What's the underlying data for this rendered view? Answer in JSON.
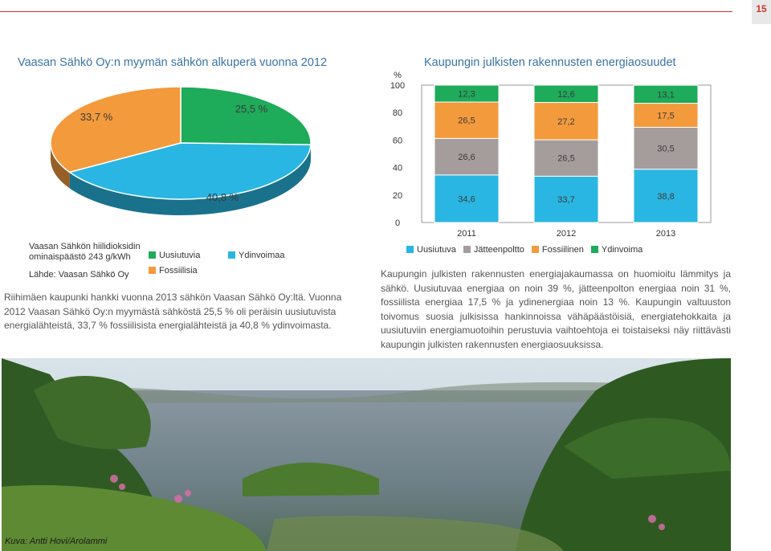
{
  "page": {
    "number": "15"
  },
  "pie": {
    "title": "Vaasan Sähkö Oy:n myymän sähkön alkuperä vuonna 2012",
    "labels": {
      "fossil": "33,7 %",
      "renewable": "25,5 %",
      "nuclear": "40,8 %"
    },
    "emission_line1": "Vaasan Sähkön hiilidioksidin",
    "emission_line2": "ominaispäästö 243 g/kWh",
    "source": "Lähde: Vaasan Sähkö Oy",
    "legend": {
      "renewable": "Uusiutuvia",
      "nuclear": "Ydinvoimaa",
      "fossil": "Fossiilisia"
    },
    "paragraph": "Riihimäen kaupunki hankki vuonna 2013 sähkön Vaasan Sähkö Oy:ltä. Vuonna 2012 Vaasan Sähkö Oy:n myymästä sähköstä 25,5 % oli peräisin uusiutuvista energialähteistä, 33,7 % fossiilisista energialähteistä ja 40,8 % ydinvoimasta."
  },
  "bar": {
    "title": "Kaupungin julkisten rakennusten energiaosuudet",
    "unit": "%",
    "paragraph": "Kaupungin julkisten rakennusten energiajakaumassa on huomioitu lämmitys ja sähkö. Uusiutuvaa energiaa on noin 39 %, jätteenpolton energiaa noin 31 %, fossiilista energiaa 17,5 % ja ydinenergiaa noin 13 %. Kaupungin valtuuston toivomus suosia julkisissa hankinnoissa vähäpäästöisiä, energiatehokkaita ja uusiutuviin energiamuotoihin perustuvia vaihtoehtoja ei toistaiseksi näy riittävästi kaupungin julkisten rakennusten energiaosuuksissa."
  },
  "chart_data": [
    {
      "type": "pie",
      "title": "Vaasan Sähkö Oy:n myymän sähkön alkuperä vuonna 2012",
      "slices": [
        {
          "name": "Uusiutuvia",
          "value": 25.5,
          "label": "25,5 %",
          "color": "#1eab5a"
        },
        {
          "name": "Ydinvoimaa",
          "value": 40.8,
          "label": "40,8 %",
          "color": "#2ab6e2"
        },
        {
          "name": "Fossiilisia",
          "value": 33.7,
          "label": "33,7 %",
          "color": "#f39a3c"
        }
      ],
      "legend_position": "bottom"
    },
    {
      "type": "bar",
      "stacked": true,
      "title": "Kaupungin julkisten rakennusten energiaosuudet",
      "ylabel": "%",
      "ylim": [
        0,
        100
      ],
      "yticks": [
        "0",
        "20",
        "40",
        "60",
        "80",
        "100"
      ],
      "categories": [
        "2011",
        "2012",
        "2013"
      ],
      "series": [
        {
          "name": "Uusiutuva",
          "color": "#2ab6e2",
          "values": [
            34.6,
            33.7,
            38.8
          ],
          "labels": [
            "34,6",
            "33,7",
            "38,8"
          ]
        },
        {
          "name": "Jätteenpoltto",
          "color": "#a59d9c",
          "values": [
            26.6,
            26.5,
            30.5
          ],
          "labels": [
            "26,6",
            "26,5",
            "30,5"
          ]
        },
        {
          "name": "Fossiilinen",
          "color": "#f39a3c",
          "values": [
            26.5,
            27.2,
            17.5
          ],
          "labels": [
            "26,5",
            "27,2",
            "17,5"
          ]
        },
        {
          "name": "Ydinvoima",
          "color": "#1eab5a",
          "values": [
            12.3,
            12.6,
            13.1
          ],
          "labels": [
            "12,3",
            "12,6",
            "13,1"
          ]
        }
      ],
      "legend_position": "bottom",
      "grid": false
    }
  ],
  "photo": {
    "credit": "Kuva: Antti Hovi/Arolammi"
  }
}
